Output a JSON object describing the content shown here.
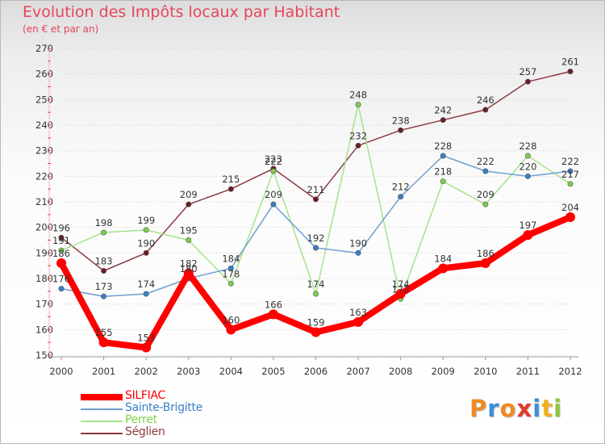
{
  "header": {
    "title": "Evolution des Impôts locaux par Habitant",
    "subtitle": "(en € et par an)"
  },
  "logo": {
    "text": "Proxiti",
    "colors": [
      "#f08a24",
      "#3a8fd8",
      "#f08a24",
      "#e23a2a",
      "#3a8fd8",
      "#f0b020",
      "#8cc640"
    ]
  },
  "chart_data": {
    "type": "line",
    "title": "Evolution des Impôts locaux par Habitant",
    "subtitle": "(en € et par an)",
    "xlabel": "",
    "ylabel": "",
    "categories": [
      "2000",
      "2001",
      "2002",
      "2003",
      "2004",
      "2005",
      "2006",
      "2007",
      "2008",
      "2009",
      "2010",
      "2011",
      "2012"
    ],
    "ylim": [
      150,
      270
    ],
    "yticks": [
      150,
      160,
      170,
      180,
      190,
      200,
      210,
      220,
      230,
      240,
      250,
      260,
      270
    ],
    "grid": "horizontal",
    "legend_position": "bottom-left",
    "series": [
      {
        "name": "SILFIAC",
        "color": "#ff0000",
        "marker_color": "#ff0000",
        "emphasis": true,
        "values": [
          186,
          155,
          153,
          182,
          160,
          166,
          159,
          163,
          174,
          184,
          186,
          197,
          204
        ]
      },
      {
        "name": "Sainte-Brigitte",
        "color": "#6e9fd0",
        "marker_color": "#3a80c8",
        "values": [
          176,
          173,
          174,
          180,
          184,
          209,
          192,
          190,
          212,
          228,
          222,
          220,
          222
        ]
      },
      {
        "name": "Perret",
        "color": "#a6e38a",
        "marker_color": "#7cd04c",
        "values": [
          191,
          198,
          199,
          195,
          178,
          222,
          174,
          248,
          172,
          218,
          209,
          228,
          217
        ]
      },
      {
        "name": "Séglien",
        "color": "#8c3a40",
        "marker_color": "#6a1e26",
        "values": [
          196,
          183,
          190,
          209,
          215,
          223,
          211,
          232,
          238,
          242,
          246,
          257,
          261
        ]
      }
    ],
    "legend_label_colors": {
      "SILFIAC": "#ff0000",
      "Sainte-Brigitte": "#3a80c8",
      "Perret": "#7cd04c",
      "Séglien": "#8c3a40"
    }
  }
}
